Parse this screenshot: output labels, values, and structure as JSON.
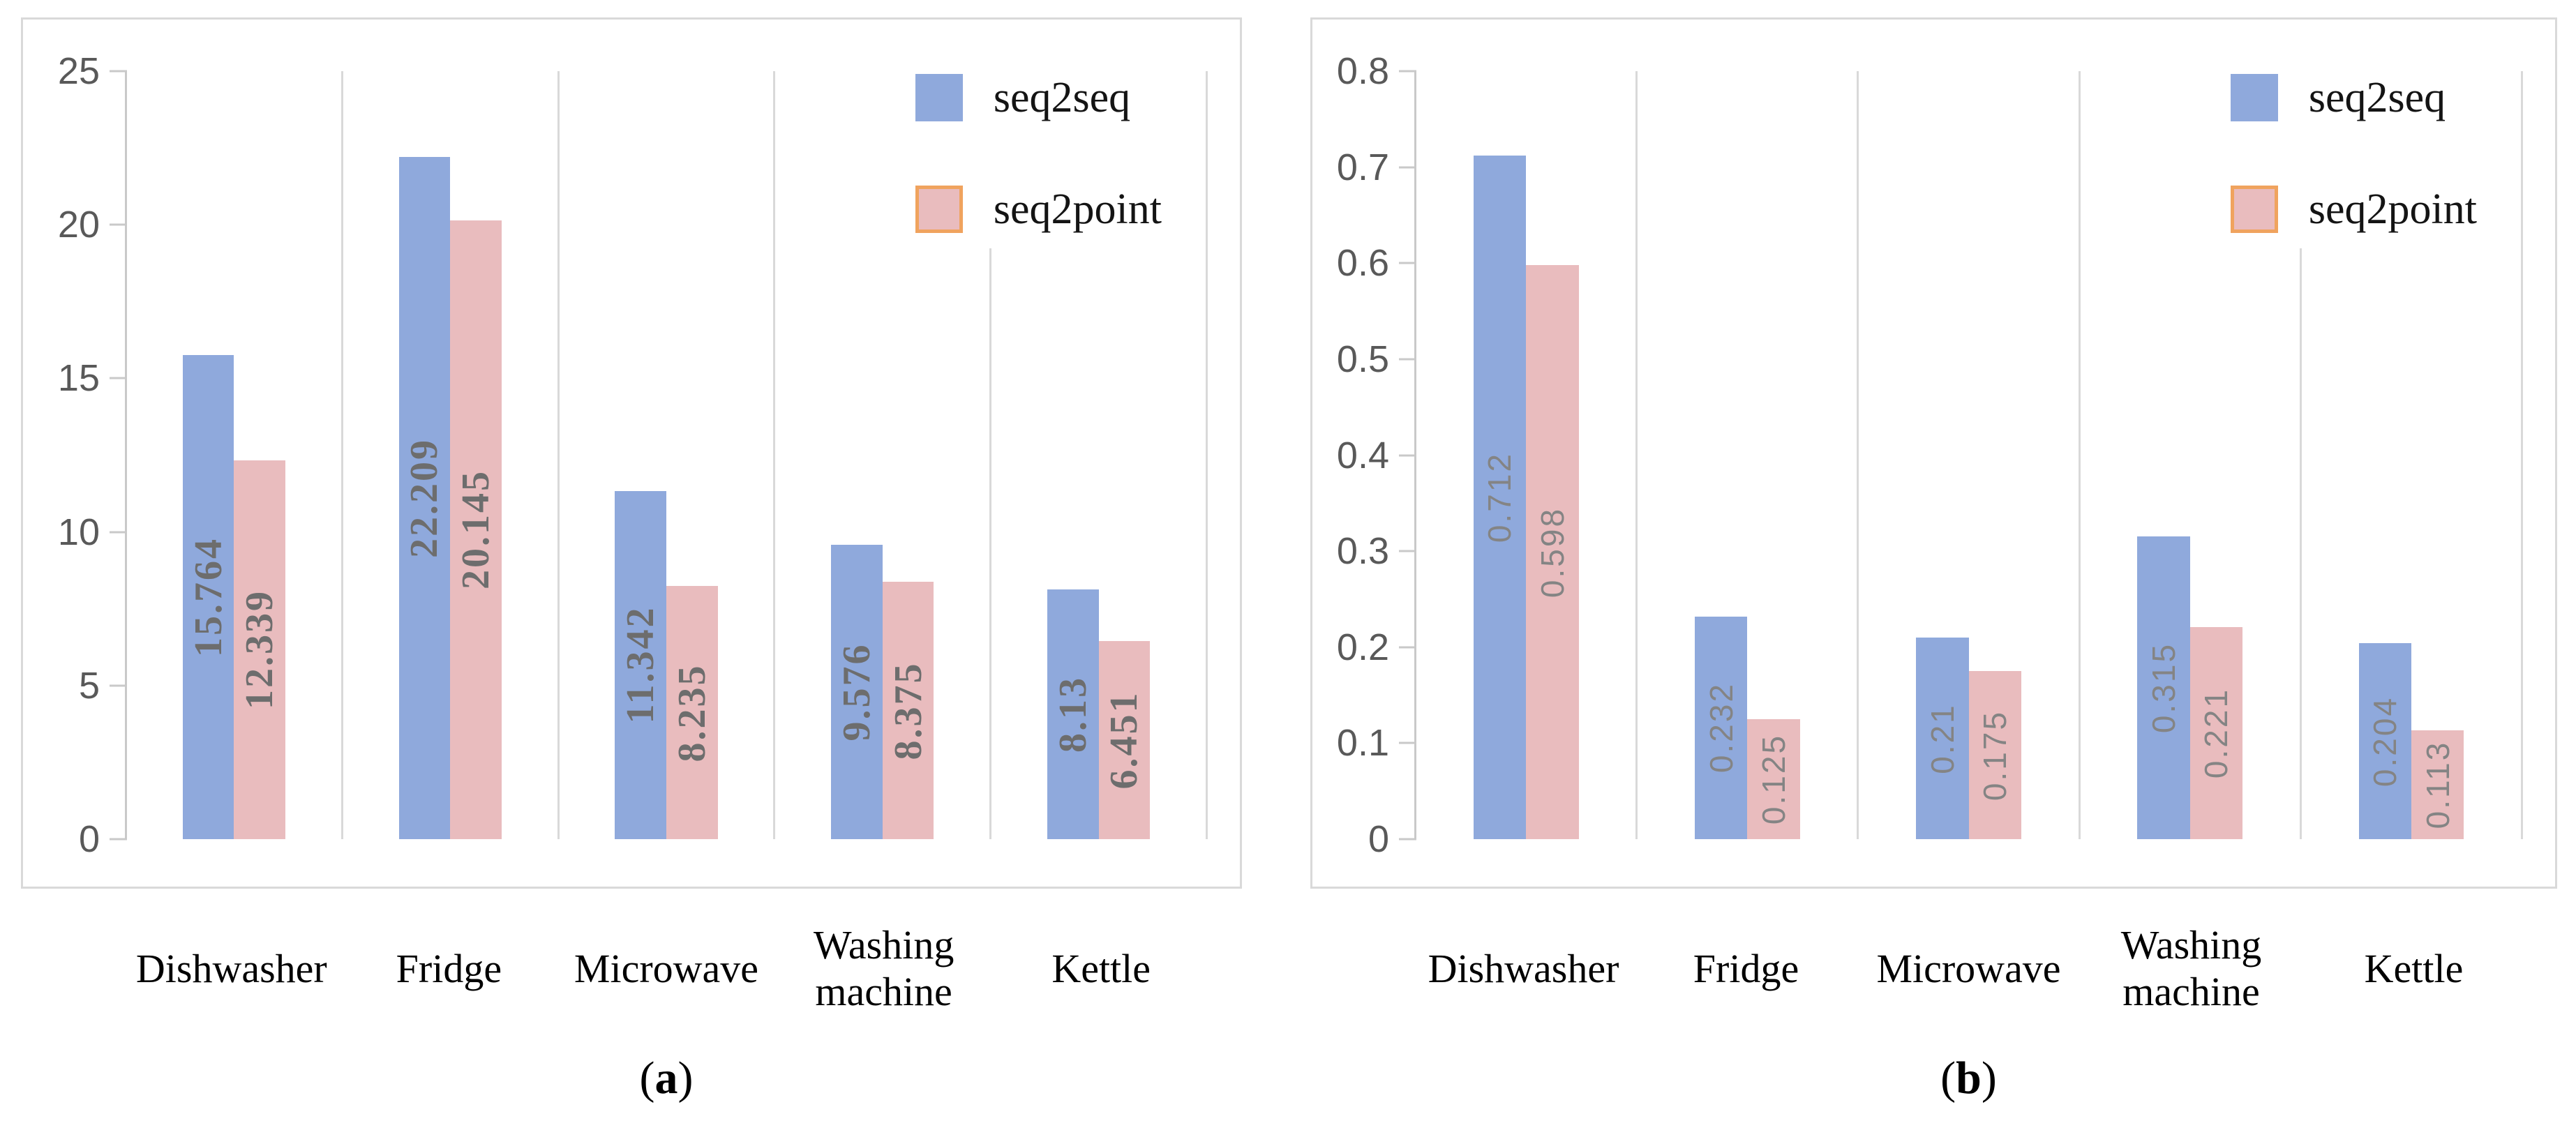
{
  "colors": {
    "bar_seq2seq": "#8FA9DC",
    "bar_seq2point": "#E9BCBE",
    "seq2point_swatch_border": "#F0A35E",
    "gridline": "#D9D9D9",
    "axis_line": "#C9C9C9",
    "y_tick_label": "#595959",
    "data_label_chart_a": "#6D6D6D",
    "data_label_chart_b": "#848484"
  },
  "legend": {
    "position": "top-right",
    "items": [
      {
        "label": "seq2seq",
        "color": "#8FA9DC",
        "border": ""
      },
      {
        "label": "seq2point",
        "color": "#E9BCBE",
        "border": "#F0A35E"
      }
    ]
  },
  "chart_data": [
    {
      "id": "a",
      "type": "bar",
      "title": "",
      "xlabel": "",
      "ylabel": "",
      "categories": [
        "Dishwasher",
        "Fridge",
        "Microwave",
        "Washing machine",
        "Kettle"
      ],
      "series": [
        {
          "name": "seq2seq",
          "values": [
            15.764,
            22.209,
            11.342,
            9.576,
            8.13
          ]
        },
        {
          "name": "seq2point",
          "values": [
            12.339,
            20.145,
            8.235,
            8.375,
            6.451
          ]
        }
      ],
      "y_axis": {
        "min": 0,
        "max": 25,
        "tick_step": 5,
        "tick_labels": [
          "0",
          "5",
          "10",
          "15",
          "20",
          "25"
        ]
      },
      "grid": "vertical category separators only",
      "legend_position": "top-right inside plot",
      "data_label_style": "rotated 90deg inside bar, bold serif gray",
      "caption": {
        "open": "(",
        "letter": "a",
        "close": ")"
      }
    },
    {
      "id": "b",
      "type": "bar",
      "title": "",
      "xlabel": "",
      "ylabel": "",
      "categories": [
        "Dishwasher",
        "Fridge",
        "Microwave",
        "Washing machine",
        "Kettle"
      ],
      "series": [
        {
          "name": "seq2seq",
          "values": [
            0.712,
            0.232,
            0.21,
            0.315,
            0.204
          ]
        },
        {
          "name": "seq2point",
          "values": [
            0.598,
            0.125,
            0.175,
            0.221,
            0.113
          ]
        }
      ],
      "y_axis": {
        "min": 0,
        "max": 0.8,
        "tick_step": 0.1,
        "tick_labels": [
          "0",
          "0.1",
          "0.2",
          "0.3",
          "0.4",
          "0.5",
          "0.6",
          "0.7",
          "0.8"
        ]
      },
      "grid": "vertical category separators only",
      "legend_position": "top-right inside plot",
      "data_label_style": "rotated 90deg inside bar, sans-serif gray",
      "caption": {
        "open": "(",
        "letter": "b",
        "close": ")"
      }
    }
  ]
}
